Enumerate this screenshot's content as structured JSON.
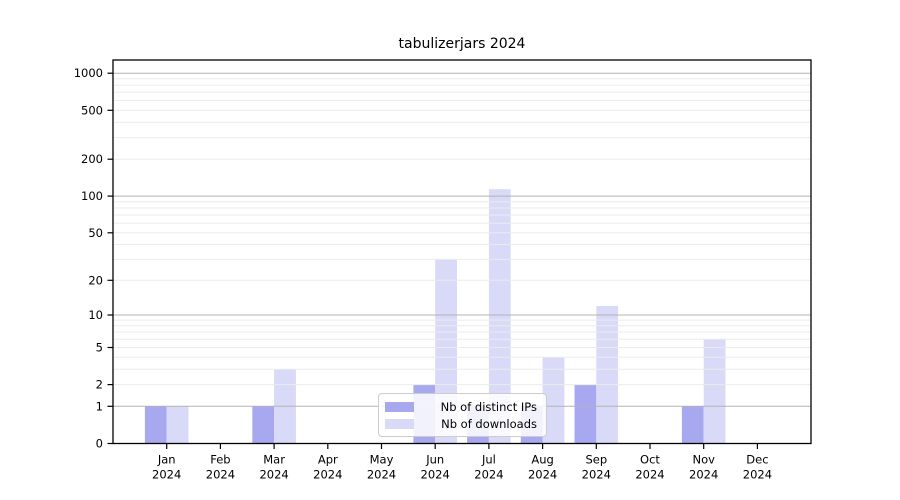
{
  "chart_data": {
    "type": "bar",
    "title": "tabulizerjars 2024",
    "categories": [
      "Jan",
      "Feb",
      "Mar",
      "Apr",
      "May",
      "Jun",
      "Jul",
      "Aug",
      "Sep",
      "Oct",
      "Nov",
      "Dec"
    ],
    "x_year_label": "2024",
    "series": [
      {
        "name": "Nb of distinct IPs",
        "key": "distinct-ips",
        "color": "#a8a8f0",
        "values": [
          1,
          0,
          1,
          0,
          0,
          2,
          1,
          1,
          2,
          0,
          1,
          0
        ]
      },
      {
        "name": "Nb of downloads",
        "key": "downloads",
        "color": "#d9d9f8",
        "values": [
          1,
          0,
          3,
          0,
          0,
          30,
          114,
          4,
          12,
          0,
          6,
          0
        ]
      }
    ],
    "yscale": "log1p",
    "ylim": [
      0,
      1280
    ],
    "yticks": [
      0,
      1,
      2,
      5,
      10,
      20,
      50,
      100,
      200,
      500,
      1000
    ],
    "grid": {
      "major_values": [
        1,
        10,
        100,
        1000
      ],
      "minor_decades": [
        1,
        10,
        100
      ],
      "minor_subs": [
        2,
        3,
        4,
        5,
        6,
        7,
        8,
        9
      ],
      "major_color": "#b3b3b3",
      "minor_color": "#ebebeb"
    },
    "legend_position": "lower-center-inside",
    "axis_color": "#000000",
    "tick_label_color": "#000000"
  }
}
